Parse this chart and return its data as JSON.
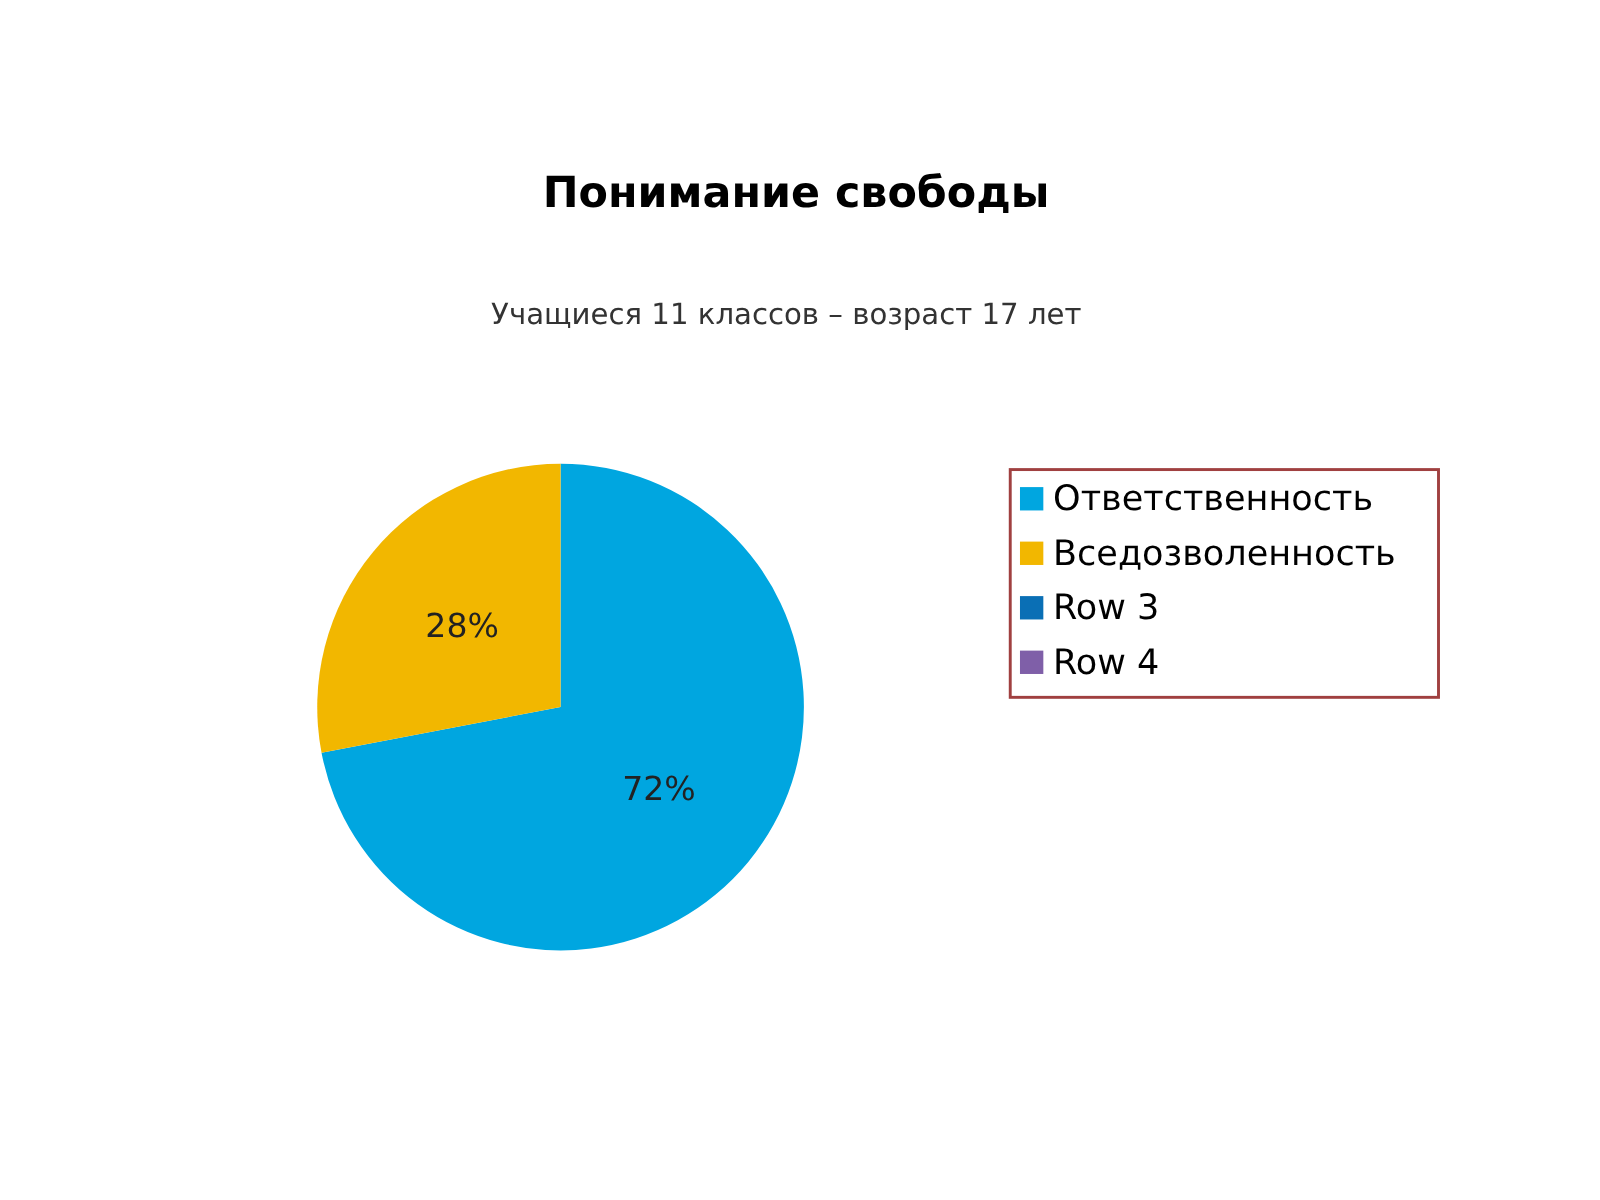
{
  "chart_data": {
    "type": "pie",
    "title": "Понимание свободы",
    "subtitle": "Учащиеся 11 классов – возраст 17 лет",
    "categories": [
      "Ответственность",
      "Вседозволенность",
      "Row 3",
      "Row 4"
    ],
    "values": [
      72,
      28,
      0,
      0
    ],
    "colors": [
      "#00a6e0",
      "#f2b700",
      "#0a6fb5",
      "#7f5fa8"
    ],
    "value_labels": [
      "72%",
      "28%",
      null,
      null
    ],
    "legend": "right"
  }
}
